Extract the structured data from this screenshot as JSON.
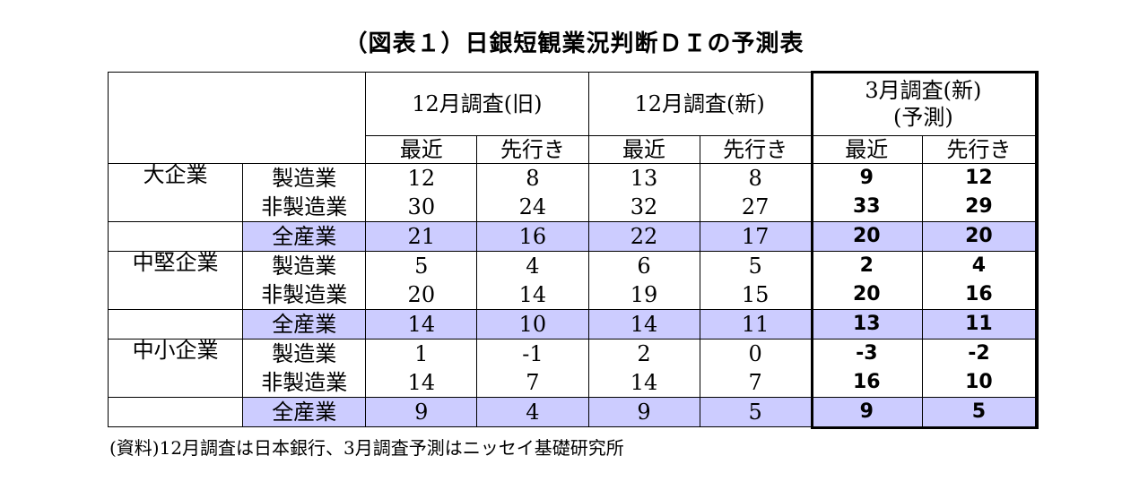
{
  "title": "（図表１）日銀短観業況判断ＤＩの予測表",
  "headers": {
    "survey_old": "12月調査(旧)",
    "survey_new": "12月調査(新)",
    "forecast": "3月調査(新)\n(予測)",
    "recent": "最近",
    "ahead": "先行き"
  },
  "groups": [
    {
      "name": "大企業",
      "rows": [
        {
          "sector": "製造業",
          "values": [
            "12",
            "8",
            "13",
            "8",
            "9",
            "12"
          ]
        },
        {
          "sector": "非製造業",
          "values": [
            "30",
            "24",
            "32",
            "27",
            "33",
            "29"
          ]
        },
        {
          "sector": "全産業",
          "values": [
            "21",
            "16",
            "22",
            "17",
            "20",
            "20"
          ]
        }
      ]
    },
    {
      "name": "中堅企業",
      "rows": [
        {
          "sector": "製造業",
          "values": [
            "5",
            "4",
            "6",
            "5",
            "2",
            "4"
          ]
        },
        {
          "sector": "非製造業",
          "values": [
            "20",
            "14",
            "19",
            "15",
            "20",
            "16"
          ]
        },
        {
          "sector": "全産業",
          "values": [
            "14",
            "10",
            "14",
            "11",
            "13",
            "11"
          ]
        }
      ]
    },
    {
      "name": "中小企業",
      "rows": [
        {
          "sector": "製造業",
          "values": [
            "1",
            "-1",
            "2",
            "0",
            "-3",
            "-2"
          ]
        },
        {
          "sector": "非製造業",
          "values": [
            "14",
            "7",
            "14",
            "7",
            "16",
            "10"
          ]
        },
        {
          "sector": "全産業",
          "values": [
            "9",
            "4",
            "9",
            "5",
            "9",
            "5"
          ]
        }
      ]
    }
  ],
  "note": "(資料)12月調査は日本銀行、3月調査予測はニッセイ基礎研究所",
  "colors": {
    "total_row_bg": "#ccccff",
    "border": "#000000"
  }
}
